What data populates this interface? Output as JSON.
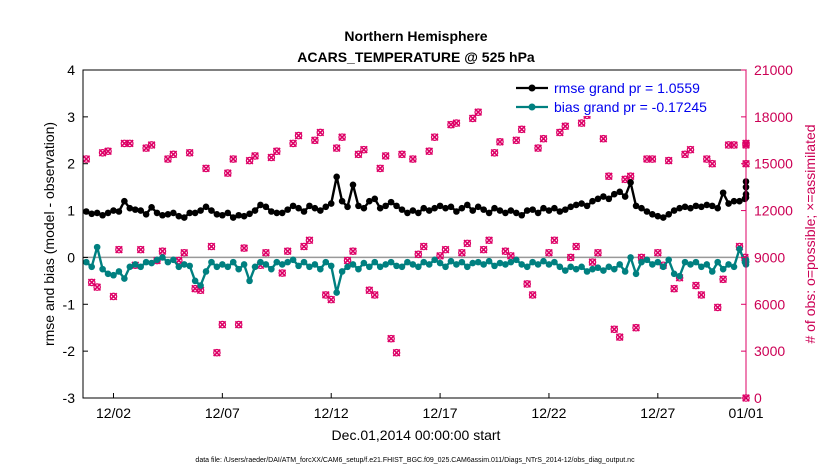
{
  "chart_data": {
    "type": "line",
    "title": "Northern Hemisphere",
    "subtitle": "ACARS_TEMPERATURE @ 525 hPa",
    "xlabel": "Dec.01,2014 00:00:00 start",
    "ylabel_left": "rmse and bias (model - observation)",
    "ylabel_right": "# of obs: o=possible; ×=assimilated",
    "footnote": "data file: /Users/raeder/DAI/ATM_forcXX/CAM6_setup/f.e21.FHIST_BGC.f09_025.CAM6assim.011/Diags_NTrS_2014-12/obs_diag_output.nc",
    "xlim": [
      0.6,
      31.05
    ],
    "ylim_left": [
      -3,
      4
    ],
    "ylim_right": [
      0,
      21000
    ],
    "x_ticks": [
      {
        "x": 2,
        "label": "12/02"
      },
      {
        "x": 7,
        "label": "12/07"
      },
      {
        "x": 12,
        "label": "12/12"
      },
      {
        "x": 17,
        "label": "12/17"
      },
      {
        "x": 22,
        "label": "12/22"
      },
      {
        "x": 27,
        "label": "12/27"
      },
      {
        "x": 32,
        "label": "01/01"
      }
    ],
    "y_ticks_left": [
      "-3",
      "-2",
      "-1",
      "0",
      "1",
      "2",
      "3",
      "4"
    ],
    "y_ticks_right": [
      "0",
      "3000",
      "6000",
      "9000",
      "12000",
      "15000",
      "18000",
      "21000"
    ],
    "y_tick_values_left": [
      -3,
      -2,
      -1,
      0,
      1,
      2,
      3,
      4
    ],
    "y_tick_values_right": [
      0,
      3000,
      6000,
      9000,
      12000,
      15000,
      18000,
      21000
    ],
    "colors": {
      "rmse": "#000000",
      "bias": "#008080",
      "obs": "#dd0066",
      "zero_line": "#999999"
    },
    "legend": [
      {
        "name": "rmse grand pr = 1.0559",
        "color": "#000000"
      },
      {
        "name": "bias grand pr = -0.17245",
        "color": "#008080"
      }
    ],
    "rmse_anchors": [
      [
        0.75,
        0.98
      ],
      [
        1.0,
        0.93
      ],
      [
        1.25,
        0.95
      ],
      [
        1.5,
        0.9
      ],
      [
        1.75,
        0.95
      ],
      [
        2.0,
        1.0
      ],
      [
        2.25,
        0.98
      ],
      [
        2.5,
        1.2
      ],
      [
        2.75,
        1.05
      ],
      [
        3.0,
        1.02
      ],
      [
        3.25,
        1.0
      ],
      [
        3.5,
        0.92
      ],
      [
        3.75,
        1.07
      ],
      [
        4.0,
        0.95
      ],
      [
        4.25,
        0.9
      ],
      [
        4.5,
        0.92
      ],
      [
        4.75,
        0.95
      ],
      [
        5.0,
        0.88
      ],
      [
        5.25,
        0.85
      ],
      [
        5.5,
        0.95
      ],
      [
        5.75,
        0.95
      ],
      [
        6.0,
        1.0
      ],
      [
        6.25,
        1.08
      ],
      [
        6.5,
        1.0
      ],
      [
        6.75,
        0.92
      ],
      [
        7.0,
        0.9
      ],
      [
        7.25,
        0.95
      ],
      [
        7.5,
        0.85
      ],
      [
        7.75,
        0.9
      ],
      [
        8.0,
        0.88
      ],
      [
        8.25,
        0.93
      ],
      [
        8.5,
        1.0
      ],
      [
        8.75,
        1.12
      ],
      [
        9.0,
        1.08
      ],
      [
        9.25,
        0.98
      ],
      [
        9.5,
        0.95
      ],
      [
        9.75,
        0.95
      ],
      [
        10.0,
        1.02
      ],
      [
        10.25,
        1.1
      ],
      [
        10.5,
        1.05
      ],
      [
        10.75,
        0.98
      ],
      [
        11.0,
        1.1
      ],
      [
        11.25,
        1.05
      ],
      [
        11.5,
        1.0
      ],
      [
        11.75,
        1.08
      ],
      [
        12.0,
        1.15
      ],
      [
        12.25,
        1.72
      ],
      [
        12.5,
        1.2
      ],
      [
        12.75,
        1.08
      ],
      [
        13.0,
        1.55
      ],
      [
        13.25,
        1.1
      ],
      [
        13.5,
        1.05
      ],
      [
        13.75,
        1.2
      ],
      [
        14.0,
        1.25
      ],
      [
        14.25,
        1.05
      ],
      [
        14.5,
        1.1
      ],
      [
        14.75,
        1.18
      ],
      [
        15.0,
        1.1
      ],
      [
        15.25,
        1.02
      ],
      [
        15.5,
        0.95
      ],
      [
        15.75,
        1.0
      ],
      [
        16.0,
        0.95
      ],
      [
        16.25,
        1.05
      ],
      [
        16.5,
        1.0
      ],
      [
        16.75,
        1.05
      ],
      [
        17.0,
        1.1
      ],
      [
        17.25,
        1.05
      ],
      [
        17.5,
        1.08
      ],
      [
        17.75,
        0.98
      ],
      [
        18.0,
        1.05
      ],
      [
        18.25,
        1.12
      ],
      [
        18.5,
        1.0
      ],
      [
        18.75,
        1.08
      ],
      [
        19.0,
        1.02
      ],
      [
        19.25,
        0.95
      ],
      [
        19.5,
        1.05
      ],
      [
        19.75,
        1.0
      ],
      [
        20.0,
        0.95
      ],
      [
        20.25,
        1.0
      ],
      [
        20.5,
        0.95
      ],
      [
        20.75,
        0.9
      ],
      [
        21.0,
        1.0
      ],
      [
        21.25,
        1.02
      ],
      [
        21.5,
        0.95
      ],
      [
        21.75,
        1.05
      ],
      [
        22.0,
        1.0
      ],
      [
        22.25,
        1.05
      ],
      [
        22.5,
        0.98
      ],
      [
        22.75,
        1.02
      ],
      [
        23.0,
        1.08
      ],
      [
        23.25,
        1.12
      ],
      [
        23.5,
        1.15
      ],
      [
        23.75,
        1.1
      ],
      [
        24.0,
        1.2
      ],
      [
        24.25,
        1.25
      ],
      [
        24.5,
        1.3
      ],
      [
        24.75,
        1.25
      ],
      [
        25.0,
        1.35
      ],
      [
        25.25,
        1.4
      ],
      [
        25.5,
        1.3
      ],
      [
        25.75,
        1.6
      ],
      [
        26.0,
        1.1
      ],
      [
        26.25,
        1.05
      ],
      [
        26.5,
        0.98
      ],
      [
        26.75,
        0.92
      ],
      [
        27.0,
        0.88
      ],
      [
        27.25,
        0.85
      ],
      [
        27.5,
        0.92
      ],
      [
        27.75,
        1.0
      ],
      [
        28.0,
        1.05
      ],
      [
        28.25,
        1.08
      ],
      [
        28.5,
        1.05
      ],
      [
        28.75,
        1.1
      ],
      [
        29.0,
        1.08
      ],
      [
        29.25,
        1.12
      ],
      [
        29.5,
        1.1
      ],
      [
        29.75,
        1.05
      ],
      [
        30.0,
        1.38
      ],
      [
        30.25,
        1.15
      ],
      [
        30.5,
        1.2
      ],
      [
        30.75,
        1.2
      ],
      [
        31.0,
        1.25
      ],
      [
        31.25,
        1.28
      ],
      [
        31.5,
        1.62
      ],
      [
        31.75,
        1.35
      ],
      [
        32.0,
        1.5
      ]
    ],
    "bias_anchors": [
      [
        0.75,
        -0.1
      ],
      [
        1.0,
        -0.2
      ],
      [
        1.25,
        0.22
      ],
      [
        1.5,
        -0.25
      ],
      [
        1.75,
        -0.35
      ],
      [
        2.0,
        -0.38
      ],
      [
        2.25,
        -0.3
      ],
      [
        2.5,
        -0.45
      ],
      [
        2.75,
        -0.2
      ],
      [
        3.0,
        -0.15
      ],
      [
        3.25,
        -0.2
      ],
      [
        3.5,
        -0.1
      ],
      [
        3.75,
        -0.12
      ],
      [
        4.0,
        -0.05
      ],
      [
        4.25,
        0.0
      ],
      [
        4.5,
        -0.1
      ],
      [
        4.75,
        -0.05
      ],
      [
        5.0,
        -0.2
      ],
      [
        5.25,
        -0.15
      ],
      [
        5.5,
        -0.18
      ],
      [
        5.75,
        -0.5
      ],
      [
        6.0,
        -0.6
      ],
      [
        6.25,
        -0.3
      ],
      [
        6.5,
        -0.1
      ],
      [
        6.75,
        -0.2
      ],
      [
        7.0,
        -0.15
      ],
      [
        7.25,
        -0.2
      ],
      [
        7.5,
        -0.1
      ],
      [
        7.75,
        -0.25
      ],
      [
        8.0,
        -0.15
      ],
      [
        8.25,
        -0.5
      ],
      [
        8.5,
        -0.2
      ],
      [
        8.75,
        -0.1
      ],
      [
        9.0,
        -0.15
      ],
      [
        9.25,
        -0.25
      ],
      [
        9.5,
        -0.1
      ],
      [
        9.75,
        -0.15
      ],
      [
        10.0,
        -0.1
      ],
      [
        10.25,
        -0.05
      ],
      [
        10.5,
        -0.18
      ],
      [
        10.75,
        -0.1
      ],
      [
        11.0,
        -0.2
      ],
      [
        11.25,
        -0.15
      ],
      [
        11.5,
        -0.25
      ],
      [
        11.75,
        -0.1
      ],
      [
        12.0,
        -0.18
      ],
      [
        12.25,
        -0.75
      ],
      [
        12.5,
        -0.3
      ],
      [
        12.75,
        -0.2
      ],
      [
        13.0,
        -0.15
      ],
      [
        13.25,
        -0.25
      ],
      [
        13.5,
        -0.12
      ],
      [
        13.75,
        -0.2
      ],
      [
        14.0,
        -0.1
      ],
      [
        14.25,
        -0.2
      ],
      [
        14.5,
        -0.15
      ],
      [
        14.75,
        -0.1
      ],
      [
        15.0,
        -0.18
      ],
      [
        15.25,
        -0.2
      ],
      [
        15.5,
        -0.1
      ],
      [
        15.75,
        -0.15
      ],
      [
        16.0,
        -0.2
      ],
      [
        16.25,
        -0.1
      ],
      [
        16.5,
        -0.15
      ],
      [
        16.75,
        -0.05
      ],
      [
        17.0,
        -0.12
      ],
      [
        17.25,
        -0.2
      ],
      [
        17.5,
        -0.08
      ],
      [
        17.75,
        -0.15
      ],
      [
        18.0,
        -0.1
      ],
      [
        18.25,
        -0.2
      ],
      [
        18.5,
        -0.12
      ],
      [
        18.75,
        -0.1
      ],
      [
        19.0,
        -0.15
      ],
      [
        19.25,
        -0.08
      ],
      [
        19.5,
        -0.18
      ],
      [
        19.75,
        -0.12
      ],
      [
        20.0,
        -0.15
      ],
      [
        20.25,
        -0.1
      ],
      [
        20.5,
        -0.05
      ],
      [
        20.75,
        -0.15
      ],
      [
        21.0,
        -0.2
      ],
      [
        21.25,
        -0.1
      ],
      [
        21.5,
        -0.15
      ],
      [
        21.75,
        -0.08
      ],
      [
        22.0,
        -0.15
      ],
      [
        22.25,
        -0.1
      ],
      [
        22.5,
        -0.2
      ],
      [
        22.75,
        -0.28
      ],
      [
        23.0,
        -0.2
      ],
      [
        23.25,
        -0.25
      ],
      [
        23.5,
        -0.2
      ],
      [
        23.75,
        -0.3
      ],
      [
        24.0,
        -0.25
      ],
      [
        24.25,
        -0.22
      ],
      [
        24.5,
        -0.28
      ],
      [
        24.75,
        -0.2
      ],
      [
        25.0,
        -0.25
      ],
      [
        25.25,
        -0.15
      ],
      [
        25.5,
        -0.3
      ],
      [
        25.75,
        0.0
      ],
      [
        26.0,
        -0.35
      ],
      [
        26.25,
        -0.1
      ],
      [
        26.5,
        -0.05
      ],
      [
        26.75,
        -0.15
      ],
      [
        27.0,
        -0.1
      ],
      [
        27.25,
        -0.2
      ],
      [
        27.5,
        -0.05
      ],
      [
        27.75,
        -0.35
      ],
      [
        28.0,
        -0.4
      ],
      [
        28.25,
        -0.1
      ],
      [
        28.5,
        -0.15
      ],
      [
        28.75,
        -0.1
      ],
      [
        29.0,
        -0.2
      ],
      [
        29.25,
        -0.15
      ],
      [
        29.5,
        -0.3
      ],
      [
        29.75,
        -0.1
      ],
      [
        30.0,
        -0.25
      ],
      [
        30.25,
        -0.15
      ],
      [
        30.5,
        -0.2
      ],
      [
        30.75,
        0.18
      ],
      [
        31.0,
        -0.1
      ],
      [
        31.25,
        -0.05
      ],
      [
        31.5,
        -0.15
      ],
      [
        31.75,
        -0.1
      ],
      [
        32.0,
        -0.1
      ]
    ],
    "obs_anchors": [
      [
        0.75,
        15300
      ],
      [
        1.0,
        7400
      ],
      [
        1.25,
        7100
      ],
      [
        1.5,
        15700
      ],
      [
        1.75,
        15800
      ],
      [
        2.0,
        6500
      ],
      [
        2.25,
        9500
      ],
      [
        2.5,
        16300
      ],
      [
        2.75,
        16300
      ],
      [
        3.0,
        8500
      ],
      [
        3.25,
        9500
      ],
      [
        3.5,
        16000
      ],
      [
        3.75,
        16200
      ],
      [
        4.0,
        8800
      ],
      [
        4.25,
        9400
      ],
      [
        4.5,
        15300
      ],
      [
        4.75,
        15600
      ],
      [
        5.0,
        8800
      ],
      [
        5.25,
        9300
      ],
      [
        5.5,
        15700
      ],
      [
        5.75,
        7000
      ],
      [
        6.0,
        6900
      ],
      [
        6.25,
        14700
      ],
      [
        6.5,
        9700
      ],
      [
        6.75,
        2900
      ],
      [
        7.0,
        4700
      ],
      [
        7.25,
        14400
      ],
      [
        7.5,
        15300
      ],
      [
        7.75,
        4700
      ],
      [
        8.0,
        9600
      ],
      [
        8.25,
        15200
      ],
      [
        8.5,
        15500
      ],
      [
        8.75,
        8500
      ],
      [
        9.0,
        9300
      ],
      [
        9.25,
        15400
      ],
      [
        9.5,
        15800
      ],
      [
        9.75,
        8000
      ],
      [
        10.0,
        9400
      ],
      [
        10.25,
        16300
      ],
      [
        10.5,
        16800
      ],
      [
        10.75,
        9700
      ],
      [
        11.0,
        10100
      ],
      [
        11.25,
        16500
      ],
      [
        11.5,
        17000
      ],
      [
        11.75,
        6600
      ],
      [
        12.0,
        6300
      ],
      [
        12.25,
        16000
      ],
      [
        12.5,
        16700
      ],
      [
        12.75,
        8800
      ],
      [
        13.0,
        9400
      ],
      [
        13.25,
        15600
      ],
      [
        13.5,
        15900
      ],
      [
        13.75,
        6900
      ],
      [
        14.0,
        6600
      ],
      [
        14.25,
        14700
      ],
      [
        14.5,
        15500
      ],
      [
        14.75,
        3800
      ],
      [
        15.0,
        2900
      ],
      [
        15.25,
        15600
      ],
      [
        15.75,
        15300
      ],
      [
        16.0,
        9200
      ],
      [
        16.25,
        9700
      ],
      [
        16.5,
        15800
      ],
      [
        16.75,
        16700
      ],
      [
        17.0,
        9100
      ],
      [
        17.25,
        9500
      ],
      [
        17.5,
        17500
      ],
      [
        17.75,
        17600
      ],
      [
        18.0,
        9300
      ],
      [
        18.25,
        9900
      ],
      [
        18.5,
        17900
      ],
      [
        18.75,
        18300
      ],
      [
        19.0,
        9500
      ],
      [
        19.25,
        10100
      ],
      [
        19.5,
        15700
      ],
      [
        19.75,
        16400
      ],
      [
        20.0,
        9400
      ],
      [
        20.25,
        9100
      ],
      [
        20.5,
        16500
      ],
      [
        20.75,
        17200
      ],
      [
        21.0,
        7300
      ],
      [
        21.25,
        6600
      ],
      [
        21.5,
        16000
      ],
      [
        21.75,
        16600
      ],
      [
        22.0,
        9300
      ],
      [
        22.25,
        10100
      ],
      [
        22.5,
        17000
      ],
      [
        22.75,
        17400
      ],
      [
        23.0,
        9000
      ],
      [
        23.25,
        9700
      ],
      [
        23.5,
        17600
      ],
      [
        23.75,
        18100
      ],
      [
        24.0,
        8700
      ],
      [
        24.25,
        9300
      ],
      [
        24.5,
        16600
      ],
      [
        24.75,
        14200
      ],
      [
        25.0,
        4400
      ],
      [
        25.25,
        3900
      ],
      [
        25.5,
        14000
      ],
      [
        25.75,
        14200
      ],
      [
        26.0,
        4500
      ],
      [
        26.25,
        9000
      ],
      [
        26.5,
        15300
      ],
      [
        26.75,
        15300
      ],
      [
        27.0,
        9300
      ],
      [
        27.25,
        8500
      ],
      [
        27.5,
        15200
      ],
      [
        27.75,
        7000
      ],
      [
        28.0,
        7700
      ],
      [
        28.25,
        15600
      ],
      [
        28.5,
        15900
      ],
      [
        28.75,
        7200
      ],
      [
        29.0,
        6600
      ],
      [
        29.25,
        15300
      ],
      [
        29.5,
        15000
      ],
      [
        29.75,
        5800
      ],
      [
        30.0,
        7600
      ],
      [
        30.25,
        16200
      ],
      [
        30.5,
        16200
      ],
      [
        30.75,
        9700
      ],
      [
        31.0,
        9000
      ],
      [
        31.25,
        16300
      ],
      [
        31.5,
        16200
      ],
      [
        31.75,
        15000
      ],
      [
        32.0,
        0
      ]
    ]
  }
}
